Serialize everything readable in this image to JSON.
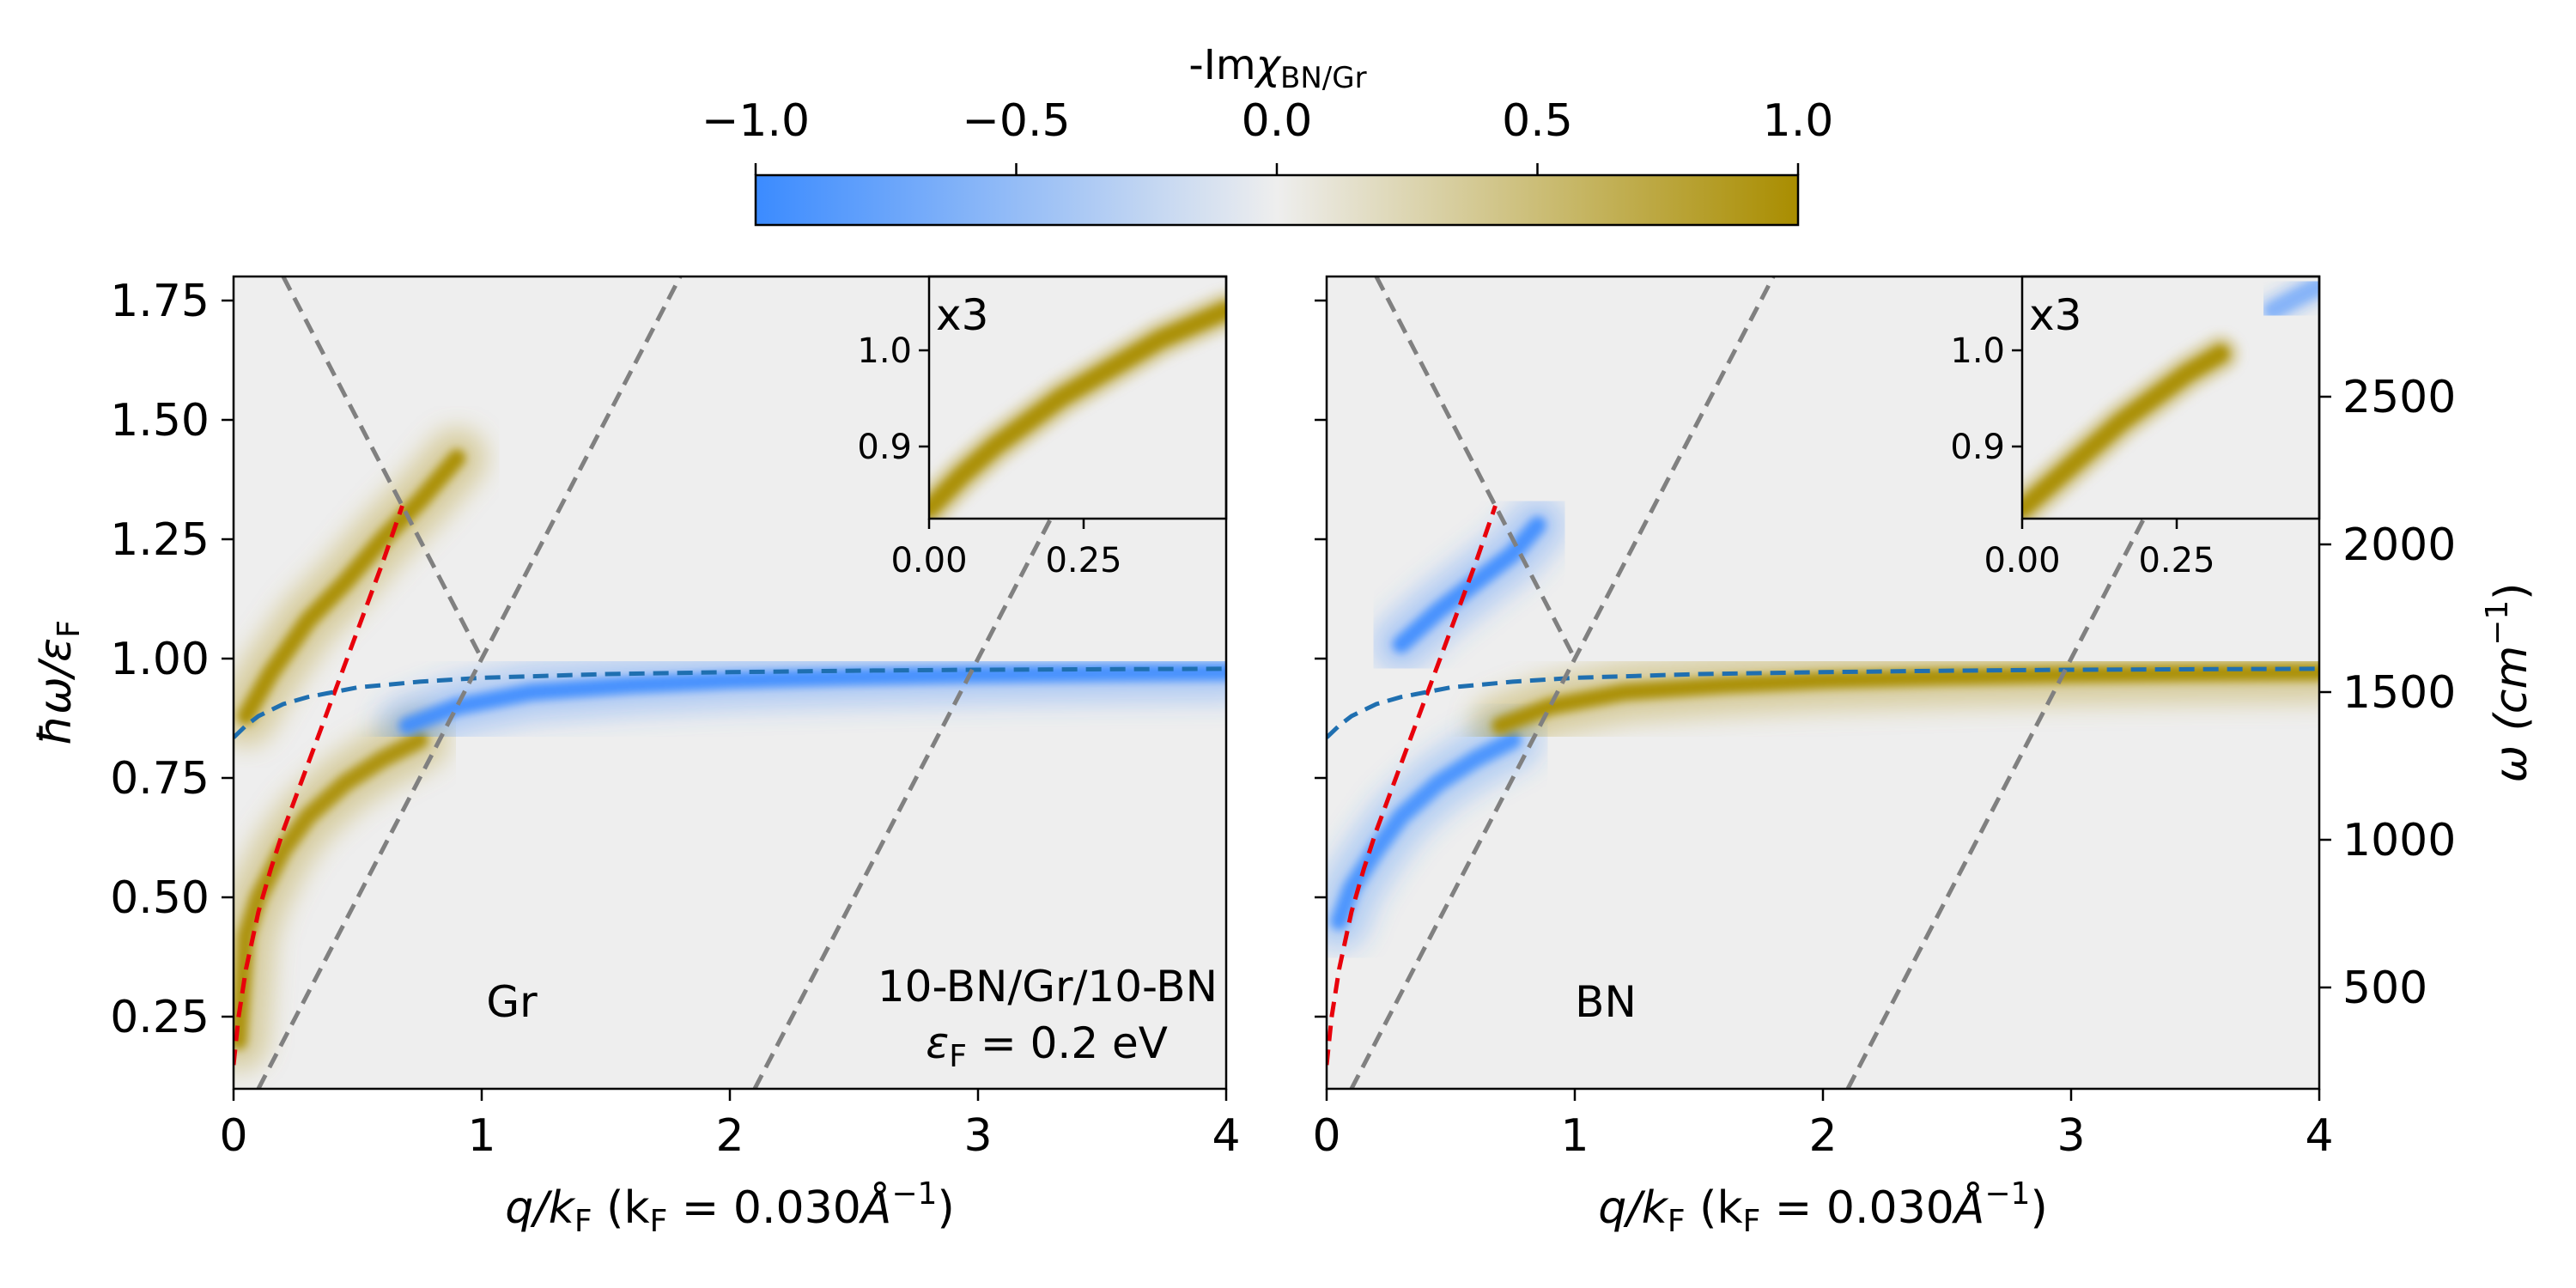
{
  "colors": {
    "neg": "#3b8bff",
    "mid": "#eeeeee",
    "pos": "#a98d00",
    "frame": "#000000",
    "dashed_gray": "#808080",
    "dashed_red": "#e8000b",
    "dashed_blue": "#1f6fb0"
  },
  "colorbar": {
    "label_prefix": "-Im",
    "label_chi": "χ",
    "label_sub": "BN/Gr",
    "ticks": [
      "−1.0",
      "−0.5",
      "0.0",
      "0.5",
      "1.0"
    ],
    "range": [
      -1.0,
      1.0
    ]
  },
  "panels": [
    {
      "id": "Gr",
      "xlabel_q": "q/k",
      "xlabel_F": "F",
      "xlabel_rest": " (k",
      "xlabel_F2": "F",
      "xlabel_eq": " = 0.030",
      "xlabel_unit": "Å",
      "xlabel_sup": "−1",
      "xlabel_close": ")",
      "ylabel_main": "ħω/ε",
      "ylabel_sub": "F",
      "label": "Gr",
      "system_label": "10-BN/Gr/10-BN",
      "fermi_label_eps": "ε",
      "fermi_label_sub": "F",
      "fermi_label_rest": " = 0.2 eV",
      "xticks": [
        "0",
        "1",
        "2",
        "3",
        "4"
      ],
      "yticks": [
        "0.25",
        "0.50",
        "0.75",
        "1.00",
        "1.25",
        "1.50",
        "1.75"
      ],
      "inset": {
        "label": "x3",
        "xticks": [
          "0.00",
          "0.25"
        ],
        "yticks": [
          "0.9",
          "1.0"
        ]
      }
    },
    {
      "id": "BN",
      "xlabel_q": "q/k",
      "xlabel_F": "F",
      "xlabel_rest": " (k",
      "xlabel_F2": "F",
      "xlabel_eq": " = 0.030",
      "xlabel_unit": "Å",
      "xlabel_sup": "−1",
      "xlabel_close": ")",
      "label": "BN",
      "right_ylabel_main": "ω (cm",
      "right_ylabel_sup": "−1",
      "right_ylabel_close": ")",
      "xticks": [
        "0",
        "1",
        "2",
        "3",
        "4"
      ],
      "right_yticks": [
        "500",
        "1000",
        "1500",
        "2000",
        "2500"
      ],
      "inset": {
        "label": "x3",
        "xticks": [
          "0.00",
          "0.25"
        ],
        "yticks": [
          "0.9",
          "1.0"
        ]
      }
    }
  ],
  "chart_data": [
    {
      "type": "heatmap",
      "title": "Gr",
      "xlabel": "q/kF (kF = 0.030 Å^-1)",
      "ylabel": "ħω/εF",
      "xlim": [
        0,
        4
      ],
      "ylim": [
        0.1,
        1.8
      ],
      "colorbar_range": [
        -1.0,
        1.0
      ],
      "annotations": [
        "Gr",
        "10-BN/Gr/10-BN",
        "εF = 0.2 eV",
        "x3"
      ],
      "bands": [
        {
          "name": "lower branch",
          "sign": 1,
          "intensity": 0.9,
          "x": [
            0.02,
            0.05,
            0.1,
            0.2,
            0.3,
            0.45,
            0.6,
            0.75
          ],
          "y": [
            0.2,
            0.42,
            0.5,
            0.6,
            0.67,
            0.74,
            0.79,
            0.83
          ]
        },
        {
          "name": "hyperbolic branch",
          "sign": 1,
          "intensity": 0.95,
          "x": [
            0.05,
            0.15,
            0.3,
            0.45,
            0.6,
            0.75,
            0.9
          ],
          "y": [
            0.88,
            0.97,
            1.08,
            1.16,
            1.25,
            1.33,
            1.42
          ]
        },
        {
          "name": "phonon branch",
          "sign": -1,
          "intensity": 0.9,
          "x": [
            0.7,
            0.9,
            1.2,
            1.6,
            2.0,
            2.5,
            3.0,
            3.5,
            4.0
          ],
          "y": [
            0.86,
            0.9,
            0.93,
            0.945,
            0.955,
            0.962,
            0.967,
            0.97,
            0.972
          ]
        }
      ],
      "series": [
        {
          "name": "red dashed",
          "style": "dashed",
          "x": [
            0.0,
            0.02,
            0.05,
            0.1,
            0.15,
            0.2,
            0.3,
            0.4,
            0.5,
            0.6,
            0.68
          ],
          "y": [
            0.15,
            0.25,
            0.35,
            0.47,
            0.56,
            0.64,
            0.78,
            0.92,
            1.06,
            1.2,
            1.32
          ]
        },
        {
          "name": "blue dashed",
          "style": "dashed",
          "x": [
            0.0,
            0.05,
            0.1,
            0.2,
            0.3,
            0.5,
            0.75,
            1.0,
            1.5,
            2.0,
            2.5,
            3.0,
            3.5,
            4.0
          ],
          "y": [
            0.835,
            0.86,
            0.88,
            0.905,
            0.92,
            0.94,
            0.952,
            0.96,
            0.968,
            0.972,
            0.975,
            0.977,
            0.978,
            0.979
          ]
        },
        {
          "name": "gray dashed 1",
          "style": "dashed",
          "x": [
            0.2,
            1.0
          ],
          "y": [
            1.8,
            1.0
          ]
        },
        {
          "name": "gray dashed 2",
          "style": "dashed",
          "x": [
            0.1,
            1.8
          ],
          "y": [
            0.1,
            1.8
          ]
        },
        {
          "name": "gray dashed 3",
          "style": "dashed",
          "x": [
            2.1,
            3.3
          ],
          "y": [
            0.1,
            1.3
          ]
        }
      ],
      "inset": {
        "xlim": [
          0,
          0.45
        ],
        "ylim": [
          0.83,
          1.08
        ],
        "bands": [
          {
            "sign": 1,
            "intensity": 0.95,
            "x": [
              0.0,
              0.05,
              0.1,
              0.15,
              0.2,
              0.25,
              0.3,
              0.35,
              0.4,
              0.45
            ],
            "y": [
              0.84,
              0.875,
              0.905,
              0.93,
              0.955,
              0.975,
              0.995,
              1.015,
              1.03,
              1.045
            ]
          }
        ]
      }
    },
    {
      "type": "heatmap",
      "title": "BN",
      "xlabel": "q/kF (kF = 0.030 Å^-1)",
      "ylabel": "ω (cm^-1)",
      "xlim": [
        0,
        4
      ],
      "ylim": [
        0.1,
        1.8
      ],
      "right_axis_ticks_cm": [
        500,
        1000,
        1500,
        2000,
        2500
      ],
      "colorbar_range": [
        -1.0,
        1.0
      ],
      "annotations": [
        "BN",
        "x3"
      ],
      "bands": [
        {
          "name": "lower branch",
          "sign": -1,
          "intensity": 0.85,
          "x": [
            0.05,
            0.1,
            0.2,
            0.3,
            0.45,
            0.6,
            0.75
          ],
          "y": [
            0.45,
            0.52,
            0.6,
            0.67,
            0.74,
            0.79,
            0.83
          ]
        },
        {
          "name": "hyperbolic branch",
          "sign": -1,
          "intensity": 0.9,
          "x": [
            0.3,
            0.45,
            0.6,
            0.75,
            0.85
          ],
          "y": [
            1.03,
            1.1,
            1.16,
            1.22,
            1.28
          ]
        },
        {
          "name": "phonon branch",
          "sign": 1,
          "intensity": 0.95,
          "x": [
            0.7,
            0.9,
            1.2,
            1.6,
            2.0,
            2.5,
            3.0,
            3.5,
            4.0
          ],
          "y": [
            0.86,
            0.9,
            0.93,
            0.945,
            0.955,
            0.962,
            0.967,
            0.97,
            0.972
          ]
        }
      ],
      "series": [
        {
          "name": "red dashed",
          "style": "dashed",
          "x": [
            0.0,
            0.02,
            0.05,
            0.1,
            0.15,
            0.2,
            0.3,
            0.4,
            0.5,
            0.6,
            0.68
          ],
          "y": [
            0.15,
            0.25,
            0.35,
            0.47,
            0.56,
            0.64,
            0.78,
            0.92,
            1.06,
            1.2,
            1.32
          ]
        },
        {
          "name": "blue dashed",
          "style": "dashed",
          "x": [
            0.0,
            0.05,
            0.1,
            0.2,
            0.3,
            0.5,
            0.75,
            1.0,
            1.5,
            2.0,
            2.5,
            3.0,
            3.5,
            4.0
          ],
          "y": [
            0.835,
            0.86,
            0.88,
            0.905,
            0.92,
            0.94,
            0.952,
            0.96,
            0.968,
            0.972,
            0.975,
            0.977,
            0.978,
            0.979
          ]
        },
        {
          "name": "gray dashed 1",
          "style": "dashed",
          "x": [
            0.2,
            1.0
          ],
          "y": [
            1.8,
            1.0
          ]
        },
        {
          "name": "gray dashed 2",
          "style": "dashed",
          "x": [
            0.1,
            1.8
          ],
          "y": [
            0.1,
            1.8
          ]
        },
        {
          "name": "gray dashed 3",
          "style": "dashed",
          "x": [
            2.1,
            3.3
          ],
          "y": [
            0.1,
            1.3
          ]
        }
      ],
      "inset": {
        "xlim": [
          0,
          0.45
        ],
        "ylim": [
          0.83,
          1.08
        ],
        "bands": [
          {
            "sign": 1,
            "intensity": 0.95,
            "x": [
              0.0,
              0.05,
              0.1,
              0.15,
              0.2,
              0.25,
              0.3
            ],
            "y": [
              0.84,
              0.87,
              0.9,
              0.93,
              0.955,
              0.98,
              1.0
            ]
          },
          {
            "sign": -1,
            "intensity": 0.5,
            "x": [
              0.38,
              0.42,
              0.45
            ],
            "y": [
              1.045,
              1.06,
              1.07
            ]
          }
        ]
      }
    }
  ]
}
